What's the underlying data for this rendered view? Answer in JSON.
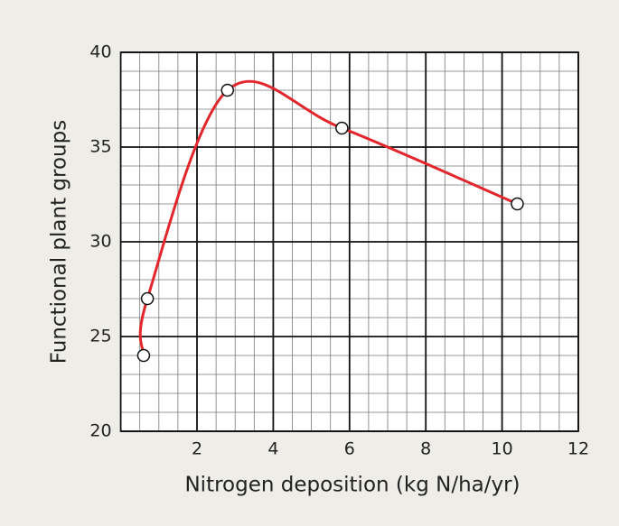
{
  "chart_data": {
    "type": "line",
    "x_label": "Nitrogen deposition (kg N/ha/yr)",
    "y_label": "Functional plant groups",
    "x": [
      0.6,
      0.7,
      2.8,
      5.8,
      10.4
    ],
    "series": [
      {
        "color": "#e2262b",
        "values": [
          24,
          27,
          38,
          36,
          32
        ]
      }
    ],
    "xlim": [
      0,
      12
    ],
    "xticks": [
      2,
      4,
      6,
      8,
      10,
      12
    ],
    "ylim": [
      20,
      40
    ],
    "yticks": [
      20,
      25,
      30,
      35,
      40
    ],
    "grid": true,
    "minor_grid": {
      "x": 0.5,
      "y": 1
    },
    "smooth": true,
    "markers": true
  }
}
